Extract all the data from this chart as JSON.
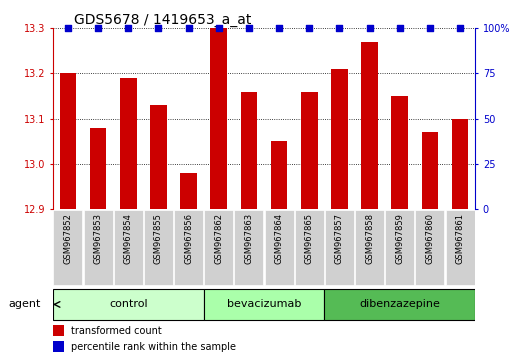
{
  "title": "GDS5678 / 1419653_a_at",
  "samples": [
    "GSM967852",
    "GSM967853",
    "GSM967854",
    "GSM967855",
    "GSM967856",
    "GSM967862",
    "GSM967863",
    "GSM967864",
    "GSM967865",
    "GSM967857",
    "GSM967858",
    "GSM967859",
    "GSM967860",
    "GSM967861"
  ],
  "transformed_count": [
    13.2,
    13.08,
    13.19,
    13.13,
    12.98,
    13.3,
    13.16,
    13.05,
    13.16,
    13.21,
    13.27,
    13.15,
    13.07,
    13.1
  ],
  "percentile_rank": [
    100,
    100,
    100,
    100,
    100,
    100,
    100,
    100,
    100,
    100,
    100,
    100,
    100,
    100
  ],
  "groups": [
    {
      "label": "control",
      "start": 0,
      "end": 4,
      "color": "#ccffcc"
    },
    {
      "label": "bevacizumab",
      "start": 5,
      "end": 8,
      "color": "#aaffaa"
    },
    {
      "label": "dibenzazepine",
      "start": 9,
      "end": 13,
      "color": "#55bb55"
    }
  ],
  "ylim": [
    12.9,
    13.3
  ],
  "yticks": [
    12.9,
    13.0,
    13.1,
    13.2,
    13.3
  ],
  "right_yticks": [
    0,
    25,
    50,
    75,
    100
  ],
  "bar_color": "#cc0000",
  "percentile_color": "#0000cc",
  "background_color": "#ffffff",
  "sample_box_color": "#d0d0d0",
  "agent_label": "agent",
  "legend_bar_label": "transformed count",
  "legend_pct_label": "percentile rank within the sample",
  "bar_width": 0.55,
  "title_fontsize": 10,
  "tick_fontsize": 7,
  "label_fontsize": 8,
  "group_fontsize": 8
}
